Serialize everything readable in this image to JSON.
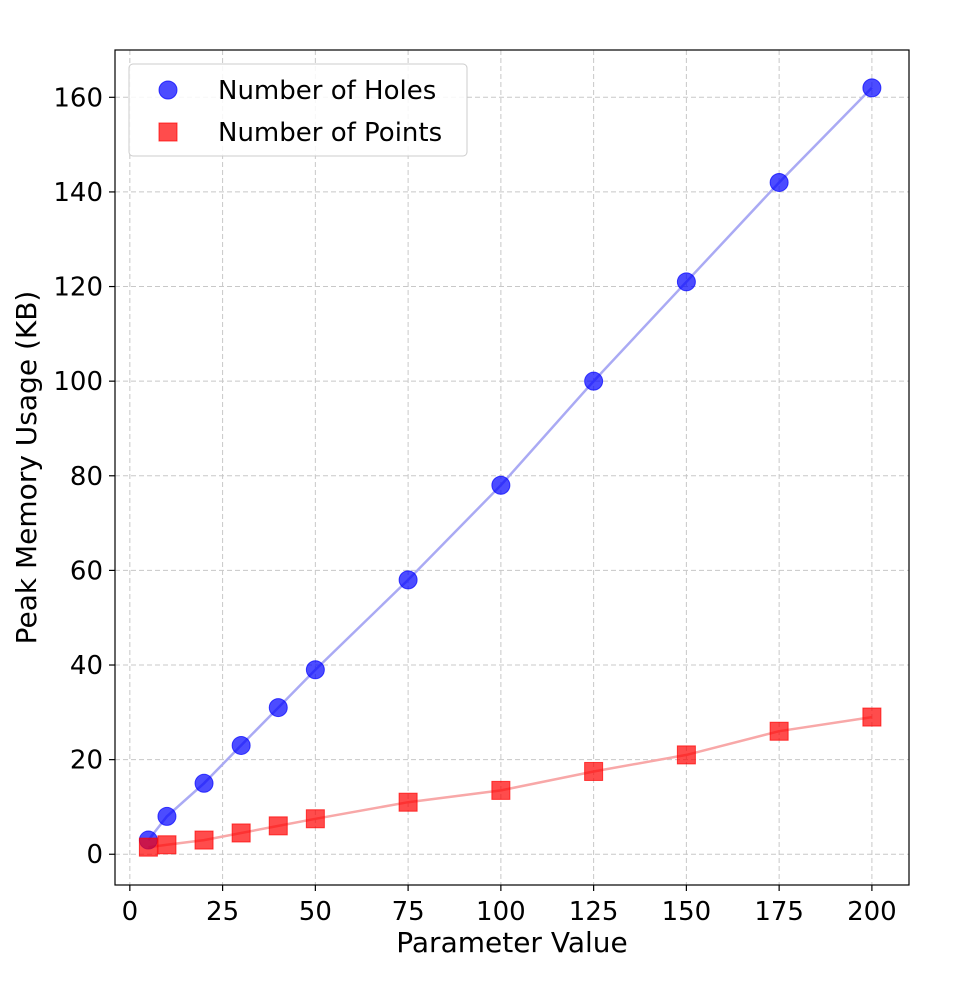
{
  "chart_data": {
    "type": "scatter",
    "title": "",
    "xlabel": "Parameter Value",
    "ylabel": "Peak Memory Usage (KB)",
    "xlim": [
      -4,
      210
    ],
    "ylim": [
      -6.5,
      170
    ],
    "xticks": [
      0,
      25,
      50,
      75,
      100,
      125,
      150,
      175,
      200
    ],
    "yticks": [
      0,
      20,
      40,
      60,
      80,
      100,
      120,
      140,
      160
    ],
    "grid": true,
    "legend": "top-left",
    "series": [
      {
        "name": "Number of Holes",
        "marker": "circle",
        "color": "#0000ff",
        "line_color": "#aaaaf4",
        "x": [
          5,
          10,
          20,
          30,
          40,
          50,
          75,
          100,
          125,
          150,
          175,
          200
        ],
        "y": [
          3,
          8,
          15,
          23,
          31,
          39,
          58,
          78,
          100,
          121,
          142,
          162
        ]
      },
      {
        "name": "Number of Points",
        "marker": "square",
        "color": "#ff0000",
        "line_color": "#f8a8a8",
        "x": [
          5,
          10,
          20,
          30,
          40,
          50,
          75,
          100,
          125,
          150,
          175,
          200
        ],
        "y": [
          1.5,
          2,
          3,
          4.5,
          6,
          7.5,
          11,
          13.5,
          17.5,
          21,
          26,
          29
        ]
      }
    ]
  }
}
